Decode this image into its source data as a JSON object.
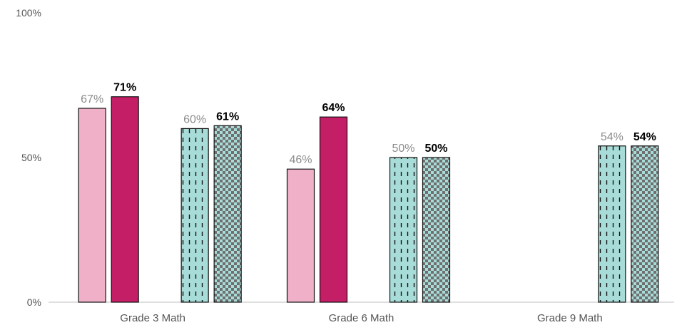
{
  "chart_data": {
    "type": "bar",
    "title": "",
    "xlabel": "",
    "ylabel": "",
    "ylim": [
      0,
      100
    ],
    "yticks": [
      "0%",
      "50%",
      "100%"
    ],
    "categories": [
      "Grade 3 Math",
      "Grade 6 Math",
      "Grade 9 Math"
    ],
    "series": [
      {
        "values": [
          67,
          46,
          null
        ],
        "labels": [
          "67%",
          "46%",
          ""
        ],
        "fill": "#f0b0c8",
        "pattern": "solid",
        "label_style": "light"
      },
      {
        "values": [
          71,
          64,
          null
        ],
        "labels": [
          "71%",
          "64%",
          ""
        ],
        "fill": "#c41e66",
        "pattern": "solid",
        "label_style": "bold"
      },
      {
        "values": [
          60,
          50,
          54
        ],
        "labels": [
          "60%",
          "50%",
          "54%"
        ],
        "fill": "#a8dcd8",
        "pattern": "dashes",
        "label_style": "light"
      },
      {
        "values": [
          61,
          50,
          54
        ],
        "labels": [
          "61%",
          "50%",
          "54%"
        ],
        "fill": "#a8dcd8",
        "pattern": "checker",
        "label_style": "bold"
      }
    ],
    "grid": false,
    "legend": "none"
  }
}
